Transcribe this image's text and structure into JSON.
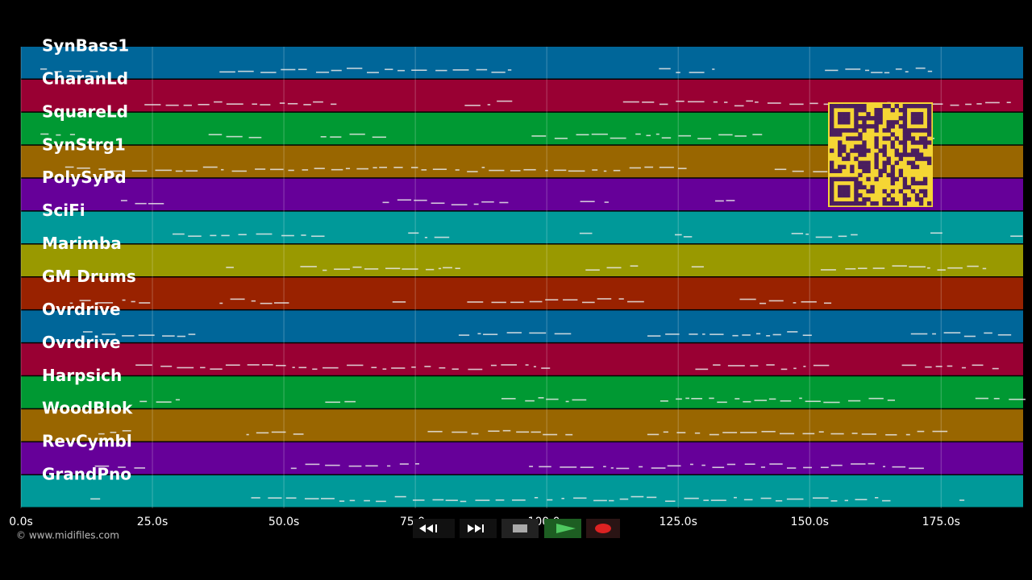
{
  "tracks": [
    {
      "name": "SynBass1",
      "color": "#006699"
    },
    {
      "name": "CharanLd",
      "color": "#990033"
    },
    {
      "name": "SquareLd",
      "color": "#009933"
    },
    {
      "name": "SynStrg1",
      "color": "#996600"
    },
    {
      "name": "PolySyPd",
      "color": "#660099"
    },
    {
      "name": "SciFi",
      "color": "#009999"
    },
    {
      "name": "Marimba",
      "color": "#999900"
    },
    {
      "name": "GM Drums",
      "color": "#992200"
    },
    {
      "name": "Ovrdrive",
      "color": "#006699"
    },
    {
      "name": "Ovrdrive",
      "color": "#990033"
    },
    {
      "name": "Harpsich",
      "color": "#009933"
    },
    {
      "name": "WoodBlok",
      "color": "#996600"
    },
    {
      "name": "RevCymbl",
      "color": "#660099"
    },
    {
      "name": "GrandPno",
      "color": "#009999"
    }
  ],
  "timeline": {
    "xlim": [
      0,
      190.6
    ],
    "ticks": [
      {
        "value": 0,
        "label": "0.0s"
      },
      {
        "value": 25,
        "label": "25.0s"
      },
      {
        "value": 50,
        "label": "50.0s"
      },
      {
        "value": 75,
        "label": "75.0s"
      },
      {
        "value": 100,
        "label": "100.0s"
      },
      {
        "value": 125,
        "label": "125.0s"
      },
      {
        "value": 150,
        "label": "150.0s"
      },
      {
        "value": 175,
        "label": "175.0s"
      }
    ]
  },
  "footer": {
    "copyright": "© www.midifiles.com"
  }
}
